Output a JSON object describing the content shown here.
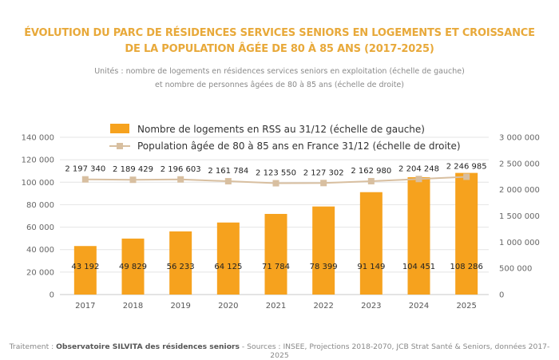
{
  "title_line1": "ÉVOLUTION DU PARC DE RÉSIDENCES SERVICES SENIORS EN LOGEMENTS ET CROISSANCE",
  "title_line2": "DE LA POPULATION ÂGÉE DE 80 À 85 ANS (2017-2025)",
  "subtitle_line1": "Unités : nombre de logements en résidences services seniors en exploitation (échelle de gauche)",
  "subtitle_line2": "et nombre de personnes âgées de 80 à 85 ans (échelle de droite)",
  "footer": {
    "prefix": "Traitement : ",
    "bold": "Observatoire SILVITA des résidences seniors",
    "suffix": " - Sources : INSEE, Projections 2018-2070, JCB Strat Santé & Seniors, données 2017-2025"
  },
  "chart_data": {
    "type": "bar+line",
    "categories": [
      "2017",
      "2018",
      "2019",
      "2020",
      "2021",
      "2022",
      "2023",
      "2024",
      "2025"
    ],
    "series": [
      {
        "name": "Nombre de logements en RSS au 31/12 (échelle de gauche)",
        "type": "bar",
        "axis": "left",
        "color": "#F6A21E",
        "values": [
          43192,
          49829,
          56233,
          64125,
          71784,
          78399,
          91149,
          104451,
          108286
        ],
        "labels": [
          "43 192",
          "49 829",
          "56 233",
          "64 125",
          "71 784",
          "78 399",
          "91 149",
          "104 451",
          "108 286"
        ]
      },
      {
        "name": "Population âgée de 80 à 85 ans en France 31/12 (échelle de droite)",
        "type": "line",
        "axis": "right",
        "color": "#D8BFA0",
        "values": [
          2197340,
          2189429,
          2196603,
          2161784,
          2123550,
          2127302,
          2162980,
          2204248,
          2246985
        ],
        "labels": [
          "2 197 340",
          "2 189 429",
          "2 196 603",
          "2 161 784",
          "2 123 550",
          "2 127 302",
          "2 162 980",
          "2 204 248",
          "2 246 985"
        ]
      }
    ],
    "left_axis": {
      "ylim": [
        0,
        140000
      ],
      "ticks": [
        "0",
        "20 000",
        "40 000",
        "60 000",
        "80 000",
        "100 000",
        "120 000",
        "140 000"
      ]
    },
    "right_axis": {
      "ylim": [
        0,
        3000000
      ],
      "ticks": [
        "0",
        "500 000",
        "1 000 000",
        "1 500 000",
        "2 000 000",
        "2 500 000",
        "3 000 000"
      ]
    },
    "grid": true,
    "legend": "top"
  }
}
